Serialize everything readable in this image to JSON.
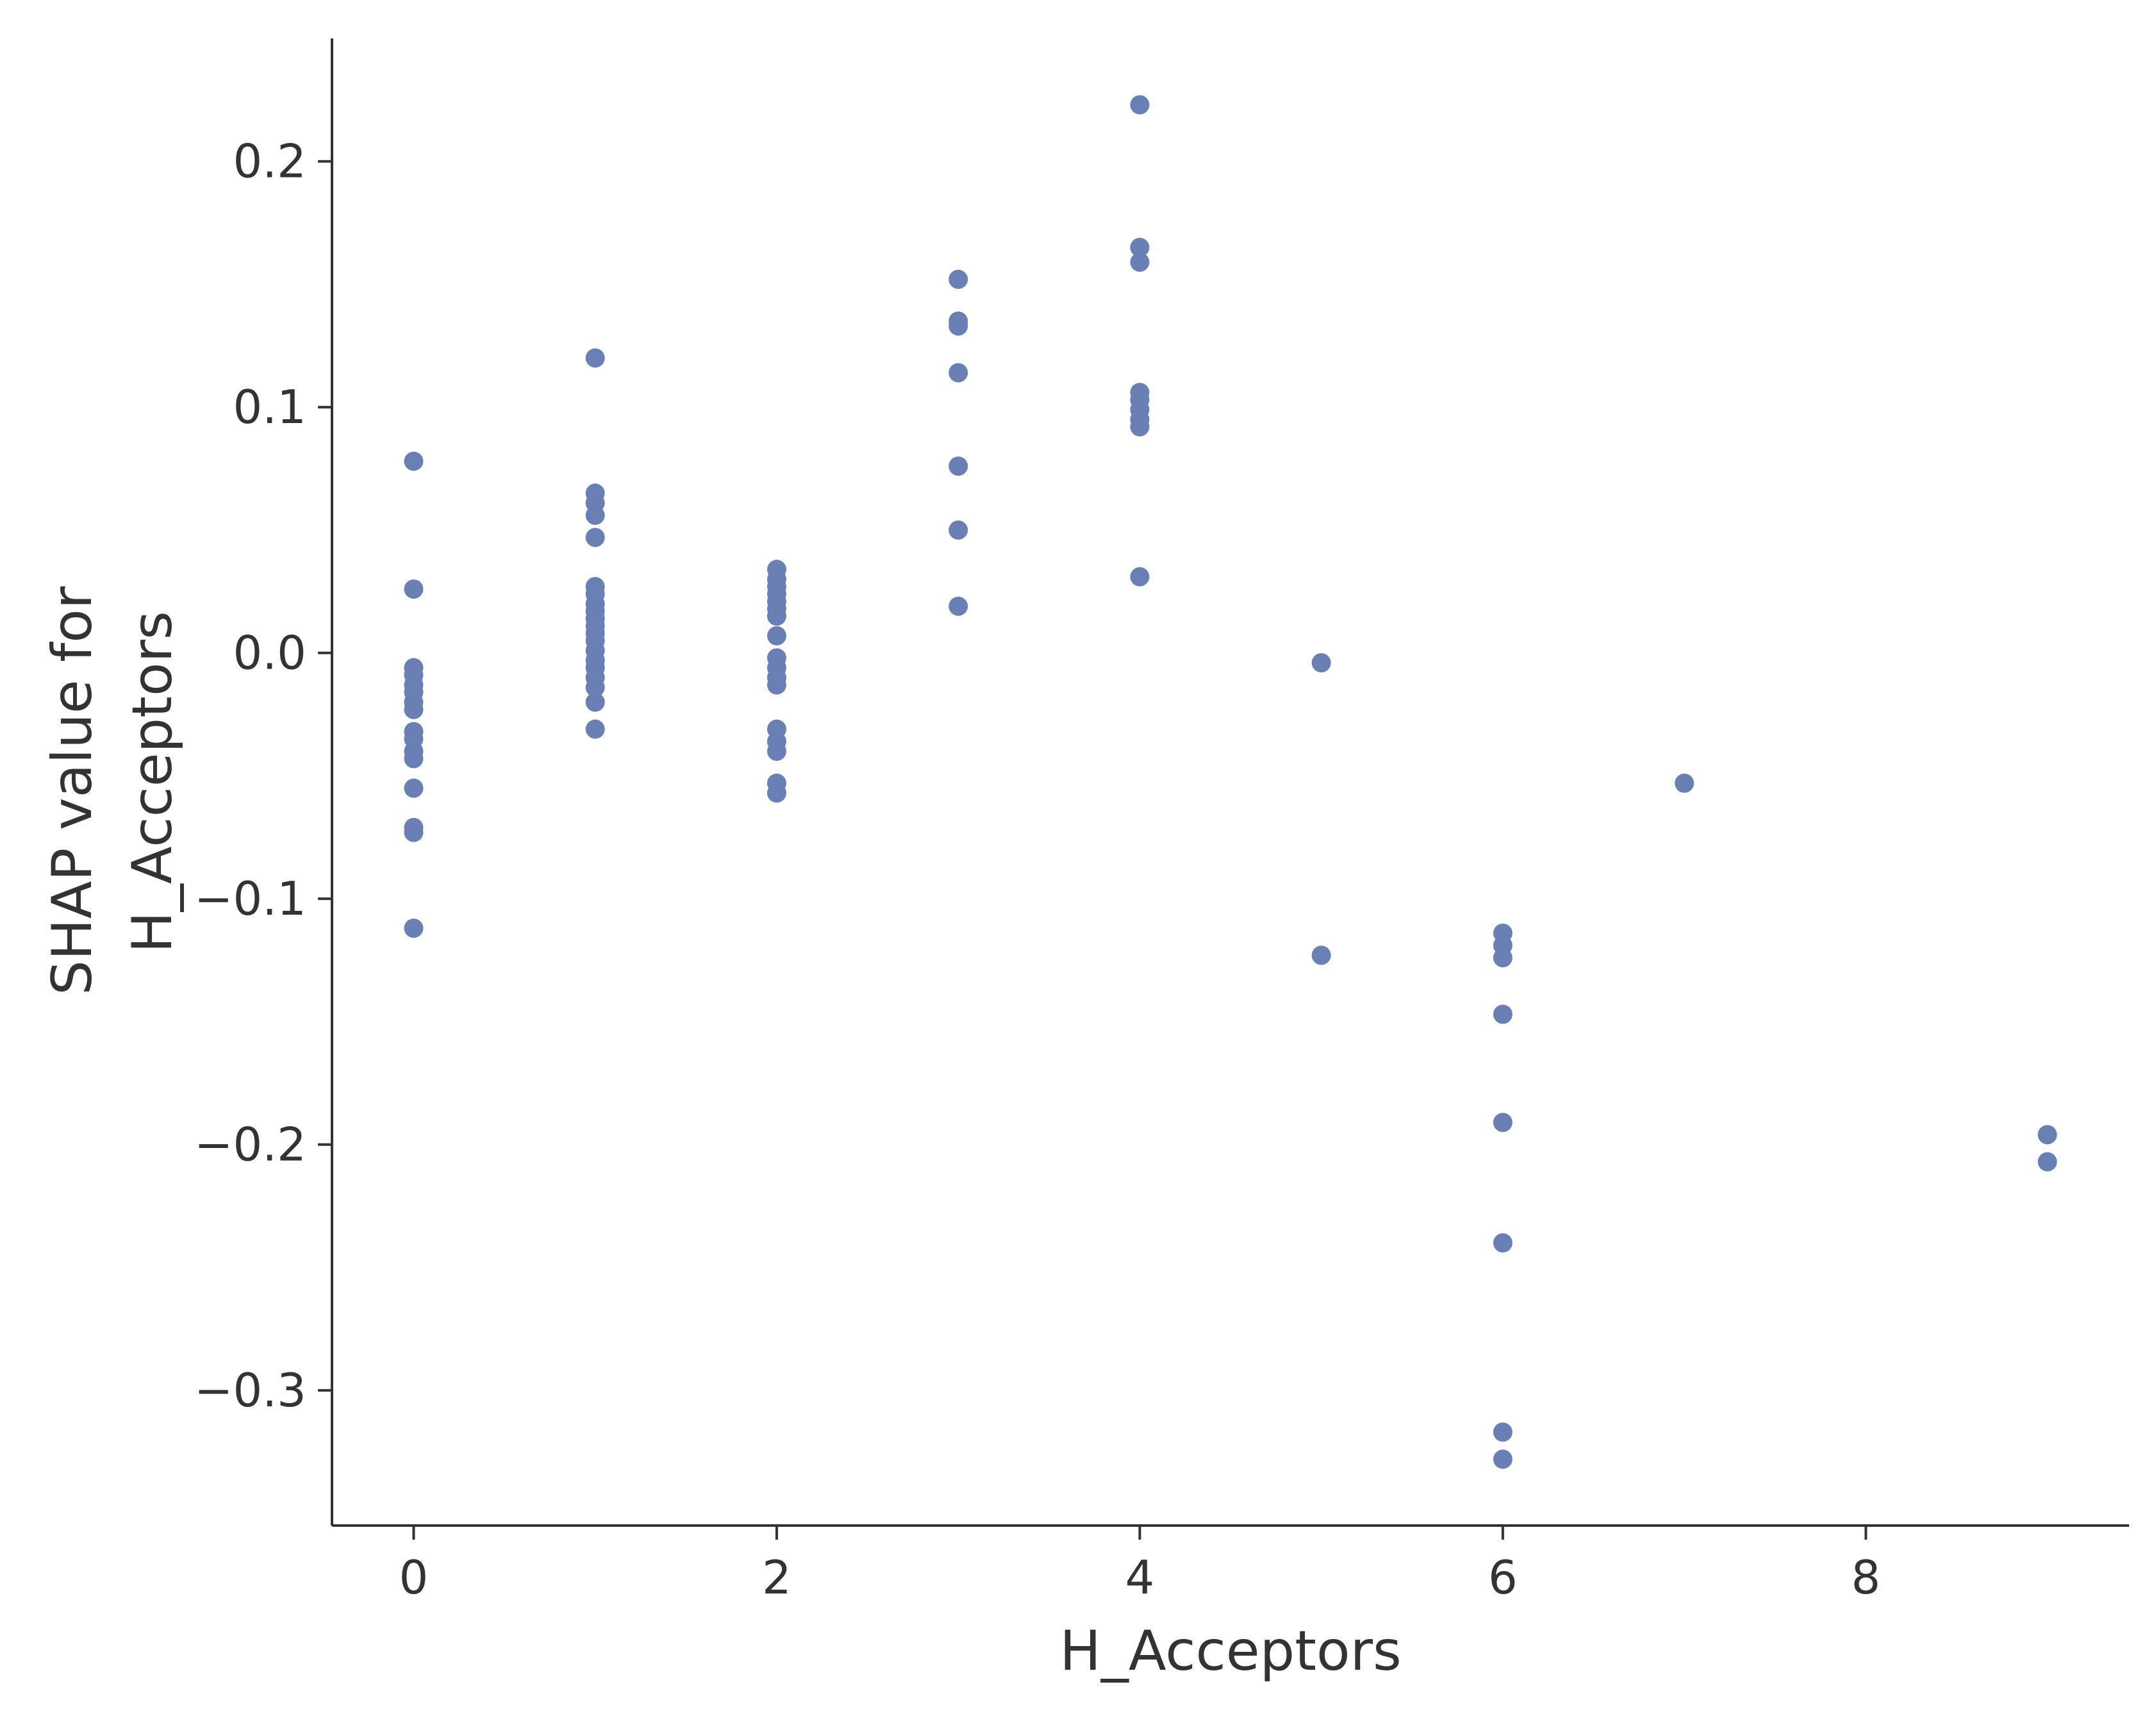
{
  "chart_data": {
    "type": "scatter",
    "title": "",
    "xlabel": "H_Acceptors",
    "ylabel_lines": [
      "SHAP value for",
      "H_Acceptors"
    ],
    "xlim": [
      -0.45,
      9.45
    ],
    "ylim": [
      -0.355,
      0.25
    ],
    "xticks": [
      0,
      2,
      4,
      6,
      8
    ],
    "yticks": [
      -0.3,
      -0.2,
      -0.1,
      0.0,
      0.1,
      0.2
    ],
    "xtick_labels": [
      "0",
      "2",
      "4",
      "6",
      "8"
    ],
    "ytick_labels": [
      "−0.3",
      "−0.2",
      "−0.1",
      "0.0",
      "0.1",
      "0.2"
    ],
    "grid": false,
    "marker_color": "#6a7fb4",
    "axis_color": "#333333",
    "points": [
      {
        "x": 0,
        "y": 0.078
      },
      {
        "x": 0,
        "y": 0.026
      },
      {
        "x": 0,
        "y": -0.006
      },
      {
        "x": 0,
        "y": -0.009
      },
      {
        "x": 0,
        "y": -0.013
      },
      {
        "x": 0,
        "y": -0.016
      },
      {
        "x": 0,
        "y": -0.02
      },
      {
        "x": 0,
        "y": -0.023
      },
      {
        "x": 0,
        "y": -0.032
      },
      {
        "x": 0,
        "y": -0.035
      },
      {
        "x": 0,
        "y": -0.04
      },
      {
        "x": 0,
        "y": -0.043
      },
      {
        "x": 0,
        "y": -0.055
      },
      {
        "x": 0,
        "y": -0.071
      },
      {
        "x": 0,
        "y": -0.073
      },
      {
        "x": 0,
        "y": -0.112
      },
      {
        "x": 1,
        "y": 0.12
      },
      {
        "x": 1,
        "y": 0.065
      },
      {
        "x": 1,
        "y": 0.061
      },
      {
        "x": 1,
        "y": 0.056
      },
      {
        "x": 1,
        "y": 0.047
      },
      {
        "x": 1,
        "y": 0.027
      },
      {
        "x": 1,
        "y": 0.024
      },
      {
        "x": 1,
        "y": 0.02
      },
      {
        "x": 1,
        "y": 0.017
      },
      {
        "x": 1,
        "y": 0.014
      },
      {
        "x": 1,
        "y": 0.011
      },
      {
        "x": 1,
        "y": 0.008
      },
      {
        "x": 1,
        "y": 0.005
      },
      {
        "x": 1,
        "y": 0.001
      },
      {
        "x": 1,
        "y": -0.003
      },
      {
        "x": 1,
        "y": -0.006
      },
      {
        "x": 1,
        "y": -0.01
      },
      {
        "x": 1,
        "y": -0.014
      },
      {
        "x": 1,
        "y": -0.02
      },
      {
        "x": 1,
        "y": -0.031
      },
      {
        "x": 2,
        "y": 0.034
      },
      {
        "x": 2,
        "y": 0.03
      },
      {
        "x": 2,
        "y": 0.027
      },
      {
        "x": 2,
        "y": 0.024
      },
      {
        "x": 2,
        "y": 0.021
      },
      {
        "x": 2,
        "y": 0.018
      },
      {
        "x": 2,
        "y": 0.015
      },
      {
        "x": 2,
        "y": 0.007
      },
      {
        "x": 2,
        "y": -0.002
      },
      {
        "x": 2,
        "y": -0.006
      },
      {
        "x": 2,
        "y": -0.01
      },
      {
        "x": 2,
        "y": -0.013
      },
      {
        "x": 2,
        "y": -0.031
      },
      {
        "x": 2,
        "y": -0.036
      },
      {
        "x": 2,
        "y": -0.04
      },
      {
        "x": 2,
        "y": -0.053
      },
      {
        "x": 2,
        "y": -0.057
      },
      {
        "x": 3,
        "y": 0.152
      },
      {
        "x": 3,
        "y": 0.135
      },
      {
        "x": 3,
        "y": 0.133
      },
      {
        "x": 3,
        "y": 0.114
      },
      {
        "x": 3,
        "y": 0.076
      },
      {
        "x": 3,
        "y": 0.05
      },
      {
        "x": 3,
        "y": 0.019
      },
      {
        "x": 4,
        "y": 0.223
      },
      {
        "x": 4,
        "y": 0.165
      },
      {
        "x": 4,
        "y": 0.159
      },
      {
        "x": 4,
        "y": 0.106
      },
      {
        "x": 4,
        "y": 0.103
      },
      {
        "x": 4,
        "y": 0.099
      },
      {
        "x": 4,
        "y": 0.095
      },
      {
        "x": 4,
        "y": 0.092
      },
      {
        "x": 4,
        "y": 0.031
      },
      {
        "x": 5,
        "y": -0.004
      },
      {
        "x": 5,
        "y": -0.123
      },
      {
        "x": 6,
        "y": -0.114
      },
      {
        "x": 6,
        "y": -0.119
      },
      {
        "x": 6,
        "y": -0.124
      },
      {
        "x": 6,
        "y": -0.147
      },
      {
        "x": 6,
        "y": -0.191
      },
      {
        "x": 6,
        "y": -0.24
      },
      {
        "x": 6,
        "y": -0.317
      },
      {
        "x": 6,
        "y": -0.328
      },
      {
        "x": 7,
        "y": -0.053
      },
      {
        "x": 9,
        "y": -0.196
      },
      {
        "x": 9,
        "y": -0.207
      }
    ]
  }
}
